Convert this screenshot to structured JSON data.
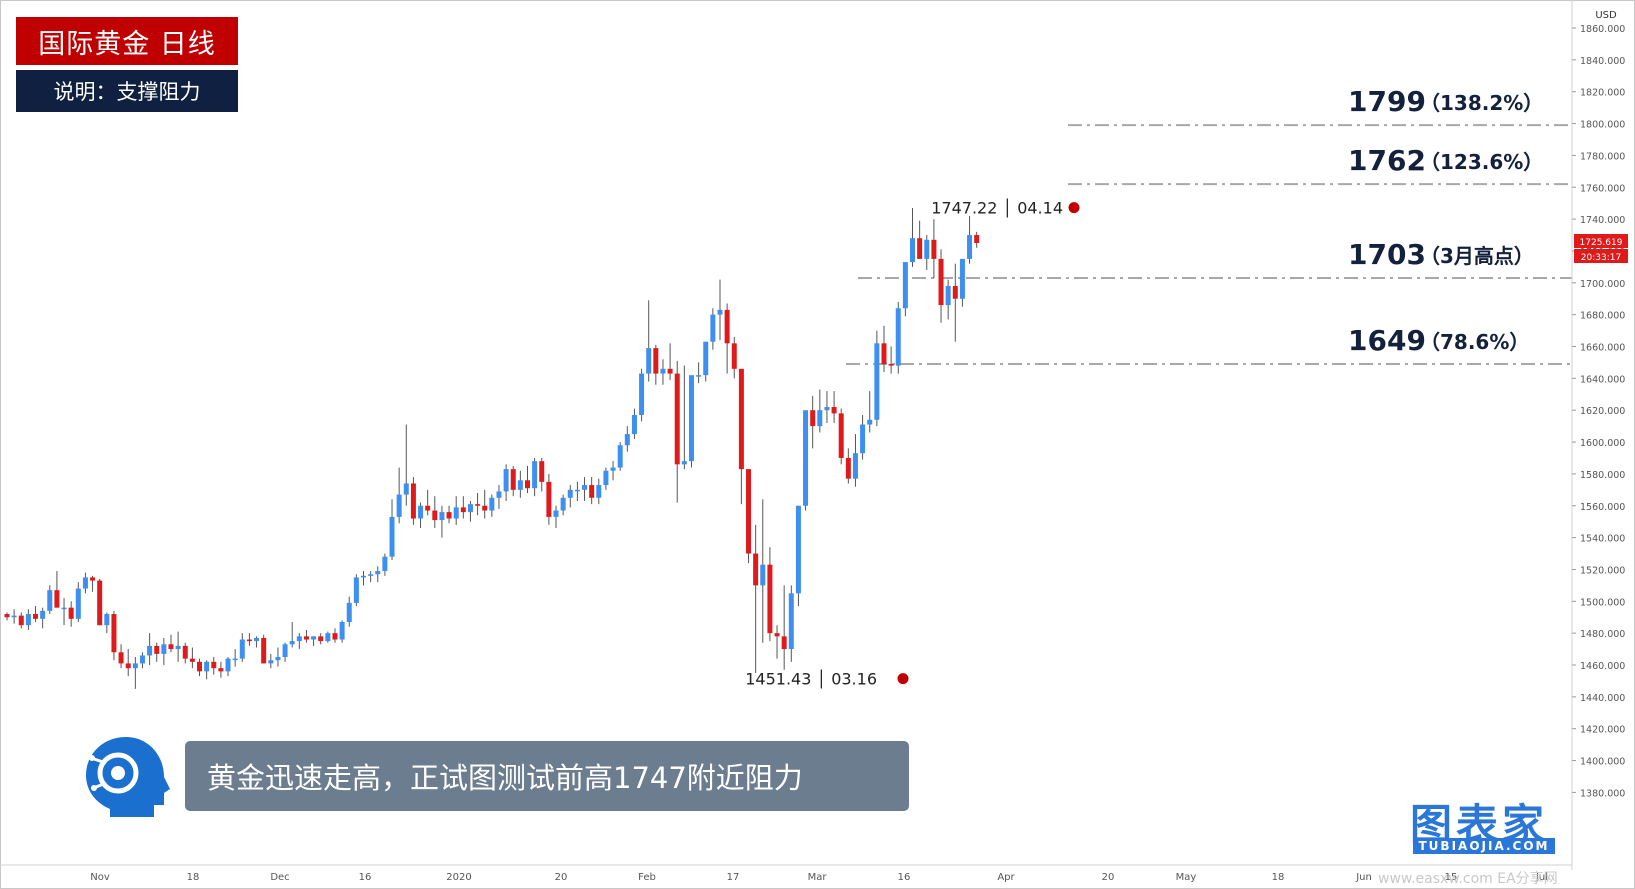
{
  "title": "国际黄金  日线",
  "subtitle": "说明：支撑阻力",
  "banner_text": "黄金迅速走高，正试图测试前高1747附近阻力",
  "watermark": {
    "name": "图表家",
    "domain": "TUBIAOJIA.COM",
    "url": "www.easxw.com  EA分享网"
  },
  "colors": {
    "up": "#3d8ff0",
    "down": "#e01a1a",
    "title_bg": "#c00000",
    "subtitle_bg": "#0f2040",
    "banner_bg": "#6b7d8e",
    "level_line": "#a8a8a8",
    "marker": "#c00000"
  },
  "chart_data": {
    "type": "candlestick",
    "currency": "USD",
    "ylim": [
      1360,
      1870
    ],
    "y_ticks": [
      "1380.000",
      "1400.000",
      "1420.000",
      "1440.000",
      "1460.000",
      "1480.000",
      "1500.000",
      "1520.000",
      "1540.000",
      "1560.000",
      "1580.000",
      "1600.000",
      "1620.000",
      "1640.000",
      "1660.000",
      "1680.000",
      "1700.000",
      "1720.000",
      "1740.000",
      "1760.000",
      "1780.000",
      "1800.000",
      "1820.000",
      "1840.000",
      "1860.000"
    ],
    "x_ticks": [
      "Nov",
      "18",
      "Dec",
      "16",
      "2020",
      "20",
      "Feb",
      "17",
      "Mar",
      "16",
      "Apr",
      "20",
      "May",
      "18",
      "Jun",
      "15",
      "Jul"
    ],
    "last_price": "1725.619",
    "countdown": "20:33:17",
    "levels": [
      {
        "value": 1799,
        "label": "1799",
        "note": "（138.2%）"
      },
      {
        "value": 1762,
        "label": "1762",
        "note": "（123.6%）"
      },
      {
        "value": 1703,
        "label": "1703",
        "note": "（3月高点）"
      },
      {
        "value": 1649,
        "label": "1649",
        "note": "（78.6%）"
      }
    ],
    "markers": [
      {
        "price": 1747.22,
        "text": "1747.22 │ 04.14"
      },
      {
        "price": 1451.43,
        "text": "1451.43 │ 03.16"
      }
    ],
    "candles": [
      [
        1492,
        1493,
        1488,
        1490
      ],
      [
        1490,
        1495,
        1486,
        1491
      ],
      [
        1491,
        1493,
        1483,
        1485
      ],
      [
        1485,
        1495,
        1482,
        1492
      ],
      [
        1492,
        1497,
        1487,
        1489
      ],
      [
        1489,
        1496,
        1483,
        1494
      ],
      [
        1494,
        1510,
        1492,
        1507
      ],
      [
        1507,
        1519,
        1500,
        1496
      ],
      [
        1496,
        1502,
        1485,
        1496
      ],
      [
        1496,
        1500,
        1484,
        1489
      ],
      [
        1489,
        1512,
        1487,
        1508
      ],
      [
        1508,
        1518,
        1505,
        1515
      ],
      [
        1515,
        1516,
        1506,
        1513
      ],
      [
        1513,
        1514,
        1485,
        1485
      ],
      [
        1485,
        1493,
        1480,
        1492
      ],
      [
        1492,
        1494,
        1463,
        1468
      ],
      [
        1468,
        1473,
        1458,
        1461
      ],
      [
        1461,
        1470,
        1453,
        1458
      ],
      [
        1458,
        1465,
        1445,
        1461
      ],
      [
        1461,
        1468,
        1458,
        1466
      ],
      [
        1466,
        1480,
        1460,
        1472
      ],
      [
        1472,
        1474,
        1462,
        1467
      ],
      [
        1467,
        1477,
        1460,
        1473
      ],
      [
        1473,
        1479,
        1468,
        1470
      ],
      [
        1470,
        1481,
        1462,
        1472
      ],
      [
        1472,
        1474,
        1461,
        1464
      ],
      [
        1464,
        1471,
        1458,
        1462
      ],
      [
        1462,
        1464,
        1453,
        1456
      ],
      [
        1456,
        1463,
        1451,
        1462
      ],
      [
        1462,
        1465,
        1454,
        1458
      ],
      [
        1458,
        1462,
        1452,
        1456
      ],
      [
        1456,
        1465,
        1453,
        1464
      ],
      [
        1464,
        1470,
        1459,
        1464
      ],
      [
        1464,
        1480,
        1462,
        1476
      ],
      [
        1476,
        1480,
        1472,
        1475
      ],
      [
        1475,
        1478,
        1471,
        1477
      ],
      [
        1477,
        1479,
        1461,
        1461
      ],
      [
        1461,
        1467,
        1458,
        1463
      ],
      [
        1463,
        1471,
        1459,
        1465
      ],
      [
        1465,
        1474,
        1462,
        1473
      ],
      [
        1473,
        1487,
        1471,
        1475
      ],
      [
        1475,
        1480,
        1470,
        1478
      ],
      [
        1478,
        1482,
        1474,
        1476
      ],
      [
        1476,
        1478,
        1472,
        1478
      ],
      [
        1478,
        1480,
        1473,
        1475
      ],
      [
        1475,
        1481,
        1474,
        1480
      ],
      [
        1480,
        1483,
        1474,
        1476
      ],
      [
        1476,
        1488,
        1474,
        1487
      ],
      [
        1487,
        1503,
        1484,
        1499
      ],
      [
        1499,
        1517,
        1497,
        1515
      ],
      [
        1515,
        1519,
        1510,
        1516
      ],
      [
        1516,
        1519,
        1512,
        1517
      ],
      [
        1517,
        1522,
        1512,
        1519
      ],
      [
        1519,
        1530,
        1516,
        1528
      ],
      [
        1528,
        1564,
        1526,
        1553
      ],
      [
        1553,
        1584,
        1549,
        1567
      ],
      [
        1567,
        1611,
        1560,
        1574
      ],
      [
        1574,
        1578,
        1548,
        1552
      ],
      [
        1552,
        1562,
        1546,
        1560
      ],
      [
        1560,
        1570,
        1554,
        1557
      ],
      [
        1557,
        1566,
        1546,
        1551
      ],
      [
        1551,
        1560,
        1540,
        1556
      ],
      [
        1556,
        1560,
        1549,
        1552
      ],
      [
        1552,
        1566,
        1548,
        1559
      ],
      [
        1559,
        1566,
        1552,
        1556
      ],
      [
        1556,
        1563,
        1550,
        1561
      ],
      [
        1561,
        1568,
        1554,
        1560
      ],
      [
        1560,
        1570,
        1552,
        1557
      ],
      [
        1557,
        1567,
        1553,
        1565
      ],
      [
        1565,
        1573,
        1558,
        1569
      ],
      [
        1569,
        1586,
        1563,
        1583
      ],
      [
        1583,
        1585,
        1566,
        1570
      ],
      [
        1570,
        1582,
        1565,
        1576
      ],
      [
        1576,
        1585,
        1568,
        1571
      ],
      [
        1571,
        1590,
        1566,
        1588
      ],
      [
        1588,
        1590,
        1569,
        1575
      ],
      [
        1575,
        1580,
        1548,
        1553
      ],
      [
        1553,
        1560,
        1546,
        1557
      ],
      [
        1557,
        1567,
        1554,
        1565
      ],
      [
        1565,
        1573,
        1559,
        1570
      ],
      [
        1570,
        1575,
        1563,
        1570
      ],
      [
        1570,
        1578,
        1563,
        1573
      ],
      [
        1573,
        1578,
        1561,
        1565
      ],
      [
        1565,
        1577,
        1561,
        1573
      ],
      [
        1573,
        1584,
        1570,
        1582
      ],
      [
        1582,
        1588,
        1576,
        1584
      ],
      [
        1584,
        1600,
        1582,
        1598
      ],
      [
        1598,
        1610,
        1594,
        1605
      ],
      [
        1605,
        1621,
        1602,
        1617
      ],
      [
        1617,
        1646,
        1613,
        1643
      ],
      [
        1643,
        1689,
        1638,
        1659
      ],
      [
        1659,
        1661,
        1636,
        1643
      ],
      [
        1643,
        1652,
        1636,
        1646
      ],
      [
        1646,
        1662,
        1639,
        1643
      ],
      [
        1643,
        1651,
        1562,
        1586
      ],
      [
        1586,
        1648,
        1583,
        1588
      ],
      [
        1588,
        1641,
        1584,
        1642
      ],
      [
        1642,
        1650,
        1637,
        1642
      ],
      [
        1642,
        1663,
        1638,
        1663
      ],
      [
        1663,
        1684,
        1658,
        1680
      ],
      [
        1680,
        1702,
        1664,
        1683
      ],
      [
        1683,
        1687,
        1643,
        1662
      ],
      [
        1662,
        1666,
        1640,
        1646
      ],
      [
        1646,
        1644,
        1561,
        1583
      ],
      [
        1583,
        1583,
        1524,
        1530
      ],
      [
        1530,
        1548,
        1455,
        1510
      ],
      [
        1510,
        1564,
        1474,
        1523
      ],
      [
        1523,
        1534,
        1475,
        1480
      ],
      [
        1480,
        1485,
        1464,
        1478
      ],
      [
        1478,
        1510,
        1457,
        1470
      ],
      [
        1470,
        1510,
        1462,
        1505
      ],
      [
        1505,
        1560,
        1497,
        1560
      ],
      [
        1560,
        1617,
        1557,
        1620
      ],
      [
        1620,
        1629,
        1596,
        1610
      ],
      [
        1610,
        1633,
        1606,
        1620
      ],
      [
        1620,
        1632,
        1612,
        1622
      ],
      [
        1622,
        1632,
        1612,
        1618
      ],
      [
        1618,
        1621,
        1586,
        1590
      ],
      [
        1590,
        1596,
        1574,
        1577
      ],
      [
        1577,
        1605,
        1572,
        1593
      ],
      [
        1593,
        1617,
        1589,
        1611
      ],
      [
        1611,
        1632,
        1606,
        1614
      ],
      [
        1614,
        1670,
        1610,
        1662
      ],
      [
        1662,
        1673,
        1644,
        1649
      ],
      [
        1649,
        1660,
        1643,
        1648
      ],
      [
        1648,
        1688,
        1643,
        1684
      ],
      [
        1684,
        1710,
        1679,
        1713
      ],
      [
        1713,
        1747,
        1710,
        1728
      ],
      [
        1728,
        1739,
        1715,
        1715
      ],
      [
        1715,
        1730,
        1708,
        1727
      ],
      [
        1727,
        1740,
        1703,
        1715
      ],
      [
        1715,
        1721,
        1675,
        1686
      ],
      [
        1686,
        1702,
        1677,
        1698
      ],
      [
        1698,
        1712,
        1663,
        1690
      ],
      [
        1690,
        1712,
        1685,
        1715
      ],
      [
        1715,
        1742,
        1712,
        1730
      ],
      [
        1730,
        1732,
        1722,
        1725
      ]
    ]
  }
}
